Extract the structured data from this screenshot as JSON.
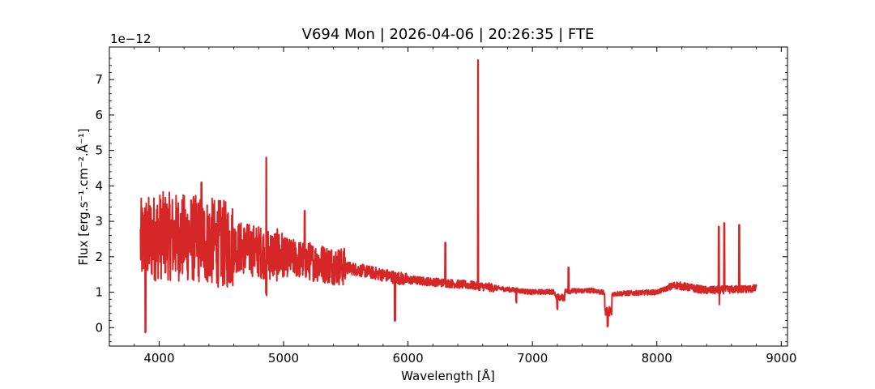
{
  "chart_data": {
    "type": "line",
    "title": "V694 Mon | 2026-04-06 | 20:26:35 | FTE",
    "xlabel": "Wavelength [Å]",
    "ylabel": "Flux [erg.s⁻¹.cm⁻².Å⁻¹]",
    "y_offset_label": "1e−12",
    "xlim": [
      3600,
      9050
    ],
    "ylim": [
      -0.52,
      7.92
    ],
    "x_ticks": [
      4000,
      5000,
      6000,
      7000,
      8000,
      9000
    ],
    "x_tick_labels": [
      "4000",
      "5000",
      "6000",
      "7000",
      "8000",
      "9000"
    ],
    "y_ticks": [
      0,
      1,
      2,
      3,
      4,
      5,
      6,
      7
    ],
    "y_tick_labels": [
      "0",
      "1",
      "2",
      "3",
      "4",
      "5",
      "6",
      "7"
    ],
    "grid": false,
    "line_color": "#d62728",
    "series": [
      {
        "x_start": 3850,
        "x_end": 8800,
        "continuum": [
          [
            3850,
            2.4
          ],
          [
            4000,
            2.6
          ],
          [
            4300,
            2.5
          ],
          [
            4600,
            2.3
          ],
          [
            5000,
            2.0
          ],
          [
            5500,
            1.7
          ],
          [
            6000,
            1.35
          ],
          [
            6500,
            1.2
          ],
          [
            7000,
            1.0
          ],
          [
            7500,
            1.05
          ],
          [
            7600,
            0.95
          ],
          [
            8000,
            1.0
          ],
          [
            8150,
            1.2
          ],
          [
            8400,
            1.05
          ],
          [
            8800,
            1.1
          ]
        ],
        "emission_lines": [
          {
            "x": 4861,
            "flux": 4.8
          },
          {
            "x": 4340,
            "flux": 4.1
          },
          {
            "x": 5170,
            "flux": 3.3
          },
          {
            "x": 6300,
            "flux": 2.4
          },
          {
            "x": 6563,
            "flux": 7.55
          },
          {
            "x": 7290,
            "flux": 1.7
          },
          {
            "x": 8498,
            "flux": 2.85
          },
          {
            "x": 8542,
            "flux": 2.95
          },
          {
            "x": 8662,
            "flux": 2.9
          }
        ],
        "absorption_features": [
          {
            "x": 3890,
            "flux": -0.15
          },
          {
            "x": 4861,
            "flux": 0.9
          },
          {
            "x": 5895,
            "flux": 0.15
          },
          {
            "x": 6870,
            "flux": 0.7
          },
          {
            "x": 7200,
            "flux": 0.5
          },
          {
            "x": 7605,
            "flux": 0.02
          },
          {
            "x": 8500,
            "flux": 0.6
          }
        ]
      }
    ]
  }
}
